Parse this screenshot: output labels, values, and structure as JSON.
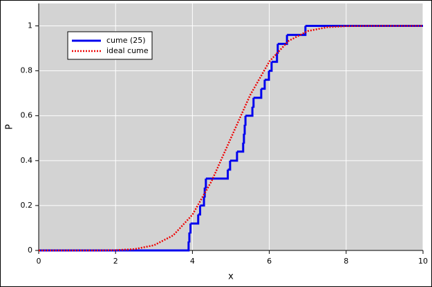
{
  "chart_data": {
    "type": "line",
    "xlabel": "x",
    "ylabel": "P",
    "xlim": [
      0,
      10
    ],
    "ylim": [
      0,
      1.1
    ],
    "xticks": [
      0,
      2,
      4,
      6,
      8,
      10
    ],
    "yticks": [
      0,
      0.2,
      0.4,
      0.6,
      0.8,
      1
    ],
    "grid": true,
    "legend": "upper left",
    "series": [
      {
        "name": "cume (25)",
        "color": "#0000ee",
        "style": "steps-post",
        "x": [
          0,
          3.9,
          3.92,
          3.95,
          4.15,
          4.2,
          4.3,
          4.32,
          4.35,
          4.92,
          4.98,
          5.16,
          5.32,
          5.34,
          5.36,
          5.38,
          5.56,
          5.59,
          5.79,
          5.88,
          5.99,
          6.06,
          6.2,
          6.22,
          6.46,
          6.94,
          10
        ],
        "values": [
          0,
          0.04,
          0.08,
          0.12,
          0.16,
          0.2,
          0.24,
          0.28,
          0.32,
          0.36,
          0.4,
          0.44,
          0.48,
          0.52,
          0.56,
          0.6,
          0.64,
          0.68,
          0.72,
          0.76,
          0.8,
          0.84,
          0.88,
          0.92,
          0.96,
          1,
          1
        ]
      },
      {
        "name": "ideal cume",
        "color": "#ee0000",
        "style": "dotted",
        "x": [
          0,
          0.5,
          1,
          1.5,
          2,
          2.5,
          3,
          3.5,
          4,
          4.5,
          5,
          5.5,
          6,
          6.5,
          7,
          7.5,
          8,
          8.5,
          9,
          9.5,
          10
        ],
        "values": [
          0,
          0,
          0,
          0,
          0.001,
          0.006,
          0.023,
          0.067,
          0.159,
          0.309,
          0.5,
          0.691,
          0.841,
          0.933,
          0.977,
          0.994,
          0.999,
          1,
          1,
          1,
          1
        ]
      }
    ]
  }
}
